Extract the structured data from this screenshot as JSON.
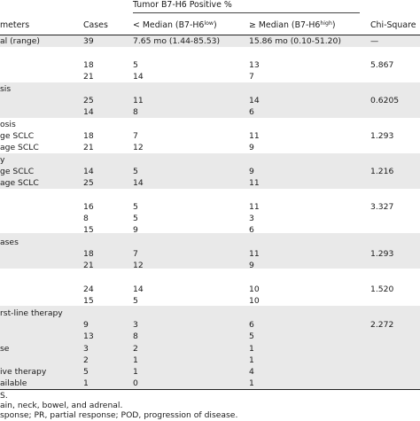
{
  "header": {
    "group_title": "Tumor B7-H6 Positive %",
    "col_params": "meters",
    "col_cases": "Cases",
    "col_low_prefix": "< Median (B7-H6",
    "col_low_sup": "low",
    "col_low_suffix": ")",
    "col_high_prefix": "≥  Median (B7-H6",
    "col_high_sup": "high",
    "col_high_suffix": ")",
    "col_chi": "Chi-Square"
  },
  "rows": [
    {
      "param": "al (range)",
      "cases": "39",
      "low": "7.65 mo (1.44-85.53)",
      "high": "15.86 mo (0.10-51.20)",
      "chi": "—"
    },
    {
      "param": "",
      "cases": "18",
      "low": "5",
      "high": "13",
      "chi": "5.867"
    },
    {
      "param": "",
      "cases": "21",
      "low": "14",
      "high": "7",
      "chi": ""
    },
    {
      "param": "sis",
      "cases": "",
      "low": "",
      "high": "",
      "chi": ""
    },
    {
      "param": "",
      "cases": "25",
      "low": "11",
      "high": "14",
      "chi": "0.6205"
    },
    {
      "param": "",
      "cases": "14",
      "low": "8",
      "high": "6",
      "chi": ""
    },
    {
      "param": "osis",
      "cases": "",
      "low": "",
      "high": "",
      "chi": ""
    },
    {
      "param": "ge SCLC",
      "cases": "18",
      "low": "7",
      "high": "11",
      "chi": "1.293"
    },
    {
      "param": "age SCLC",
      "cases": "21",
      "low": "12",
      "high": "9",
      "chi": ""
    },
    {
      "param": "y",
      "cases": "",
      "low": "",
      "high": "",
      "chi": ""
    },
    {
      "param": "ge SCLC",
      "cases": "14",
      "low": "5",
      "high": "9",
      "chi": "1.216"
    },
    {
      "param": "age SCLC",
      "cases": "25",
      "low": "14",
      "high": "11",
      "chi": ""
    },
    {
      "param": "",
      "cases": "16",
      "low": "5",
      "high": "11",
      "chi": "3.327"
    },
    {
      "param": "",
      "cases": "8",
      "low": "5",
      "high": "3",
      "chi": ""
    },
    {
      "param": "",
      "cases": "15",
      "low": "9",
      "high": "6",
      "chi": ""
    },
    {
      "param": "ases",
      "cases": "",
      "low": "",
      "high": "",
      "chi": ""
    },
    {
      "param": "",
      "cases": "18",
      "low": "7",
      "high": "11",
      "chi": "1.293"
    },
    {
      "param": "",
      "cases": "21",
      "low": "12",
      "high": "9",
      "chi": ""
    },
    {
      "param": "",
      "cases": "24",
      "low": "14",
      "high": "10",
      "chi": "1.520"
    },
    {
      "param": "",
      "cases": "15",
      "low": "5",
      "high": "10",
      "chi": ""
    },
    {
      "param": "rst-line therapy",
      "cases": "",
      "low": "",
      "high": "",
      "chi": ""
    },
    {
      "param": "",
      "cases": "9",
      "low": "3",
      "high": "6",
      "chi": "2.272"
    },
    {
      "param": "",
      "cases": "13",
      "low": "8",
      "high": "5",
      "chi": ""
    },
    {
      "param": "se",
      "cases": "3",
      "low": "2",
      "high": "1",
      "chi": ""
    },
    {
      "param": "",
      "cases": "2",
      "low": "1",
      "high": "1",
      "chi": ""
    },
    {
      "param": "ive therapy",
      "cases": "5",
      "low": "1",
      "high": "4",
      "chi": ""
    },
    {
      "param": "ailable",
      "cases": "1",
      "low": "0",
      "high": "1",
      "chi": ""
    }
  ],
  "footnotes": [
    "S.",
    "ain, neck, bowel, and adrenal.",
    "sponse; PR, partial response; POD, progression of disease."
  ]
}
